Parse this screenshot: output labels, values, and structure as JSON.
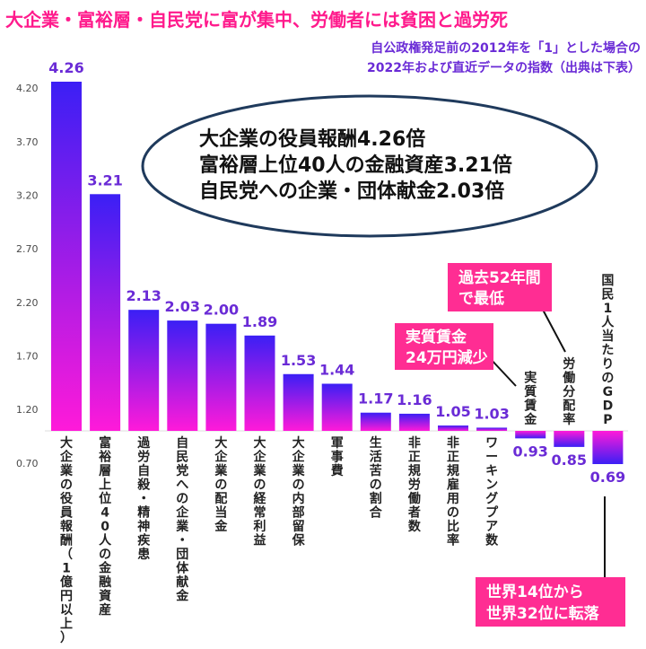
{
  "title": "大企業・富裕層・自民党に富が集中、労働者には貧困と過労死",
  "subtitle_lines": [
    "自公政権発足前の2012年を「1」とした場合の",
    "2022年および直近データの指数（出典は下表）"
  ],
  "ellipse_lines": [
    "大企業の役員報酬4.26倍",
    "富裕層上位40人の金融資産3.21倍",
    "自民党への企業・団体献金2.03倍"
  ],
  "callouts": [
    {
      "lines": [
        "過去52年間",
        "で最低"
      ]
    },
    {
      "lines": [
        "実質賃金",
        "24万円減少"
      ]
    },
    {
      "lines": [
        "世界14位から",
        "世界32位に転落"
      ]
    }
  ],
  "colors": {
    "title": "#ff1a8c",
    "subtitle": "#6a2bd6",
    "bar_top": "#3b1ff5",
    "bar_bottom": "#ff1ad9",
    "value_label": "#6a2bd6",
    "callout": "#ff2d93",
    "ellipse_stroke": "#1f3a5c"
  },
  "chart_data": {
    "type": "bar",
    "baseline": 1.0,
    "ylim": [
      0.6,
      4.4
    ],
    "yticks": [
      "4.20",
      "3.70",
      "3.20",
      "2.70",
      "2.20",
      "1.70",
      "1.20",
      "0.70"
    ],
    "grid": false,
    "categories": [
      "大企業の役員報酬（1億円以上）",
      "富裕層上位40人の金融資産",
      "過労自殺・精神疾患",
      "自民党への企業・団体献金",
      "大企業の配当金",
      "大企業の経常利益",
      "大企業の内部留保",
      "軍事費",
      "生活苦の割合",
      "非正規労働者数",
      "非正規雇用の比率",
      "ワーキングプア数",
      "実質賃金",
      "労働分配率",
      "国民1人当たりのGDP"
    ],
    "values": [
      4.26,
      3.21,
      2.13,
      2.03,
      2.0,
      1.89,
      1.53,
      1.44,
      1.17,
      1.16,
      1.05,
      1.03,
      0.93,
      0.85,
      0.69
    ],
    "value_labels": [
      "4.26",
      "3.21",
      "2.13",
      "2.03",
      "2.00",
      "1.89",
      "1.53",
      "1.44",
      "1.17",
      "1.16",
      "1.05",
      "1.03",
      "0.93",
      "0.85",
      "0.69"
    ]
  }
}
